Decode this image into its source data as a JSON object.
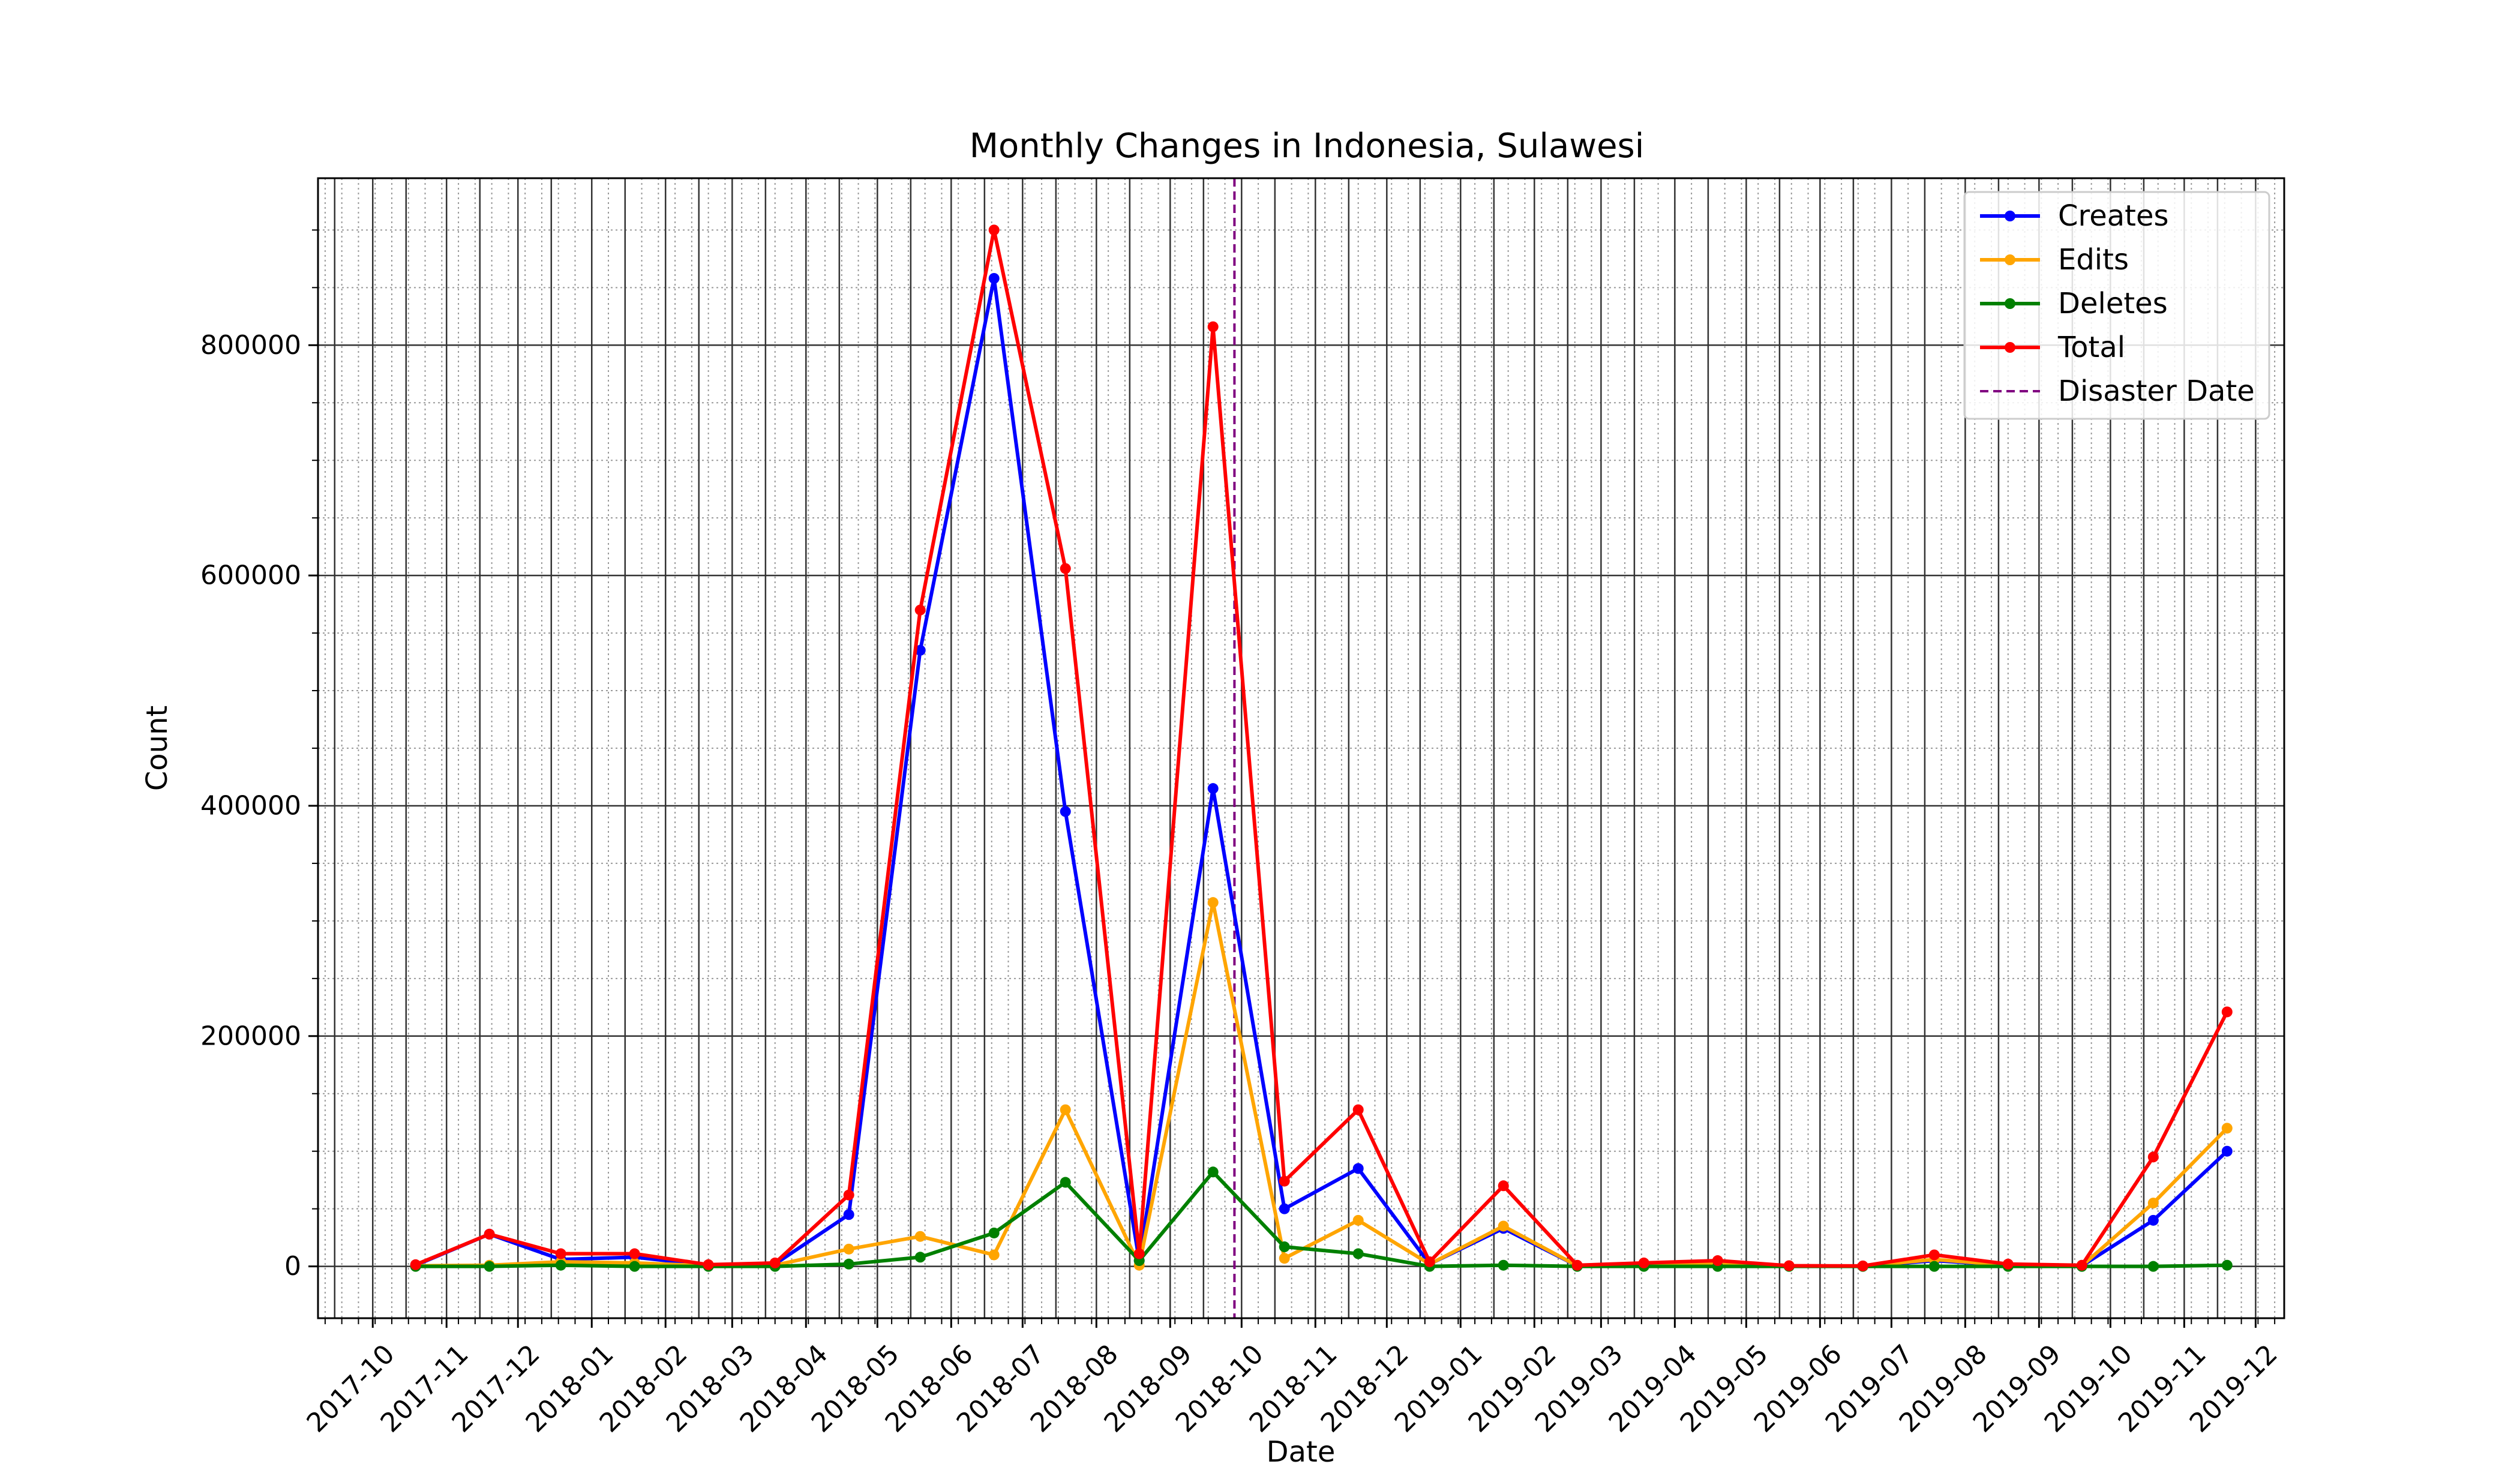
{
  "chart_data": {
    "type": "line",
    "title": "Monthly Changes in Indonesia, Sulawesi",
    "xlabel": "Date",
    "ylabel": "Count",
    "x": [
      "2017-10-19",
      "2017-11-19",
      "2017-12-19",
      "2018-01-19",
      "2018-02-19",
      "2018-03-19",
      "2018-04-19",
      "2018-05-19",
      "2018-06-19",
      "2018-07-19",
      "2018-08-19",
      "2018-09-19",
      "2018-10-19",
      "2018-11-19",
      "2018-12-19",
      "2019-01-19",
      "2019-02-19",
      "2019-03-19",
      "2019-04-19",
      "2019-05-19",
      "2019-06-19",
      "2019-07-19",
      "2019-08-19",
      "2019-09-19",
      "2019-10-19",
      "2019-11-19"
    ],
    "series": [
      {
        "name": "Creates",
        "color": "#0000ff",
        "values": [
          1000,
          28000,
          6000,
          8000,
          1000,
          2000,
          45000,
          535000,
          858000,
          395000,
          5000,
          415000,
          50000,
          85000,
          2000,
          33000,
          500,
          1000,
          3000,
          300,
          200,
          5000,
          1000,
          500,
          40000,
          100000
        ]
      },
      {
        "name": "Edits",
        "color": "#ffa500",
        "values": [
          500,
          1000,
          4000,
          3000,
          500,
          1000,
          15000,
          26000,
          10000,
          136000,
          1000,
          316000,
          7000,
          40000,
          2000,
          35000,
          500,
          2000,
          2000,
          300,
          200,
          6000,
          1000,
          500,
          55000,
          120000
        ]
      },
      {
        "name": "Deletes",
        "color": "#008000",
        "values": [
          0,
          0,
          1000,
          0,
          0,
          0,
          2000,
          8000,
          29000,
          73000,
          5000,
          82000,
          17000,
          11000,
          0,
          1000,
          0,
          0,
          0,
          0,
          0,
          0,
          0,
          0,
          0,
          1000
        ]
      },
      {
        "name": "Total",
        "color": "#ff0000",
        "values": [
          1500,
          28000,
          11000,
          11000,
          1500,
          3000,
          62000,
          570000,
          900000,
          606000,
          11000,
          816000,
          74000,
          136000,
          4000,
          70000,
          1000,
          3000,
          5000,
          600,
          400,
          10000,
          2000,
          1000,
          95000,
          221000
        ]
      }
    ],
    "vline": {
      "name": "Disaster Date",
      "date": "2018-09-28",
      "color": "#800080"
    },
    "x_ticks": [
      "2017-10",
      "2017-11",
      "2017-12",
      "2018-01",
      "2018-02",
      "2018-03",
      "2018-04",
      "2018-05",
      "2018-06",
      "2018-07",
      "2018-08",
      "2018-09",
      "2018-10",
      "2018-11",
      "2018-12",
      "2019-01",
      "2019-02",
      "2019-03",
      "2019-04",
      "2019-05",
      "2019-06",
      "2019-07",
      "2019-08",
      "2019-09",
      "2019-10",
      "2019-11",
      "2019-12"
    ],
    "y_ticks": [
      0,
      200000,
      400000,
      600000,
      800000
    ],
    "ylim": [
      -45000,
      945000
    ],
    "xlim": [
      "2017-09-08",
      "2019-12-13"
    ],
    "grid": true,
    "legend": "top-right"
  }
}
